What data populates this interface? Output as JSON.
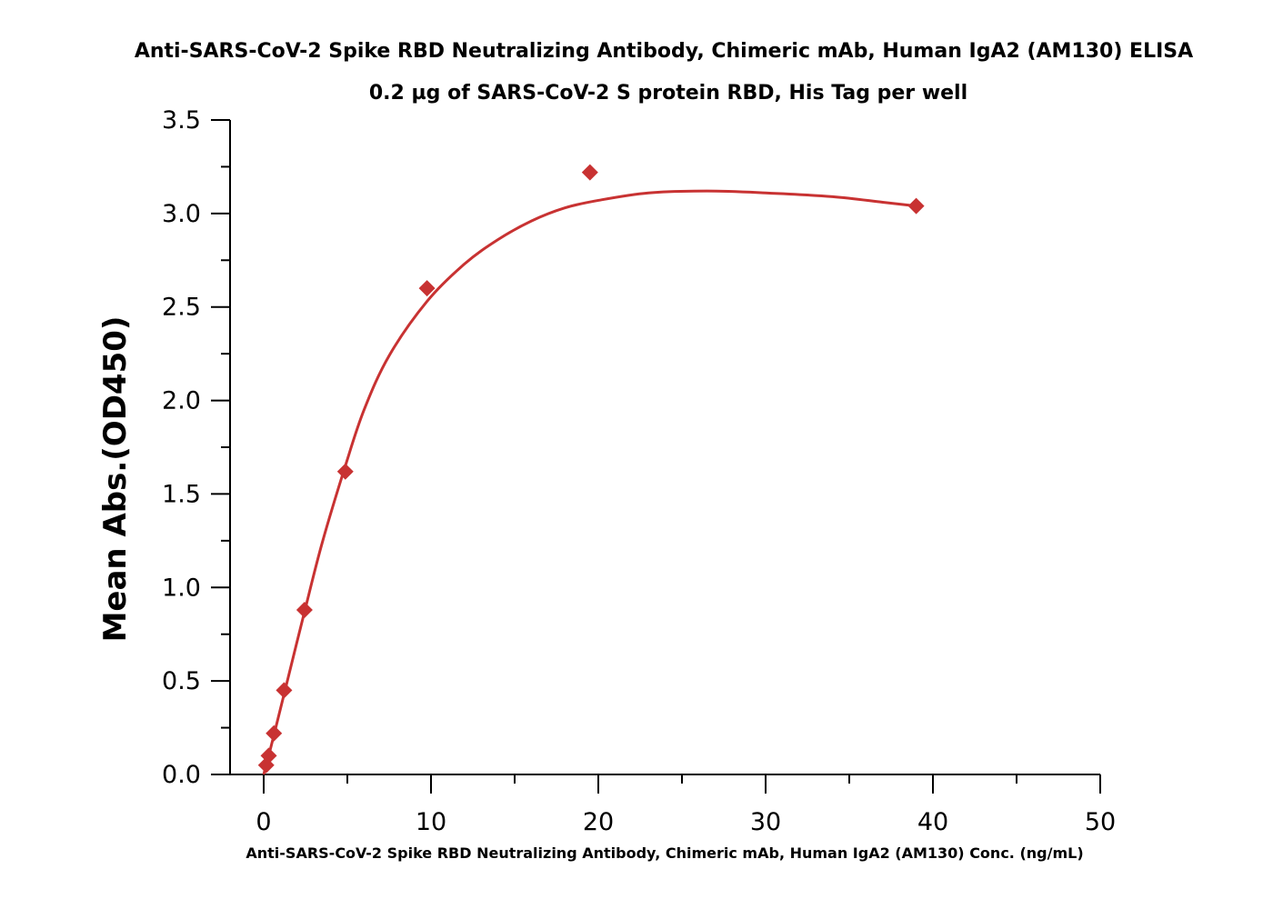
{
  "chart_data": {
    "type": "scatter",
    "title": "Anti-SARS-CoV-2 Spike RBD Neutralizing Antibody, Chimeric mAb, Human IgA2 (AM130) ELISA",
    "subtitle": "0.2 µg of SARS-CoV-2 S protein RBD, His Tag per well",
    "xlabel": "Anti-SARS-CoV-2 Spike RBD Neutralizing Antibody, Chimeric mAb, Human IgA2 (AM130) Conc. (ng/mL)",
    "ylabel": "Mean Abs.(OD450)",
    "xlim": [
      -2,
      50
    ],
    "ylim": [
      0,
      3.5
    ],
    "x_ticks": [
      "0",
      "10",
      "20",
      "30",
      "40",
      "50"
    ],
    "y_ticks": [
      "0.0",
      "0.5",
      "1.0",
      "1.5",
      "2.0",
      "2.5",
      "3.0",
      "3.5"
    ],
    "grid": false,
    "legend": "none",
    "marker": "diamond",
    "color": "#c83232",
    "series": [
      {
        "points": [
          {
            "x": 0.15,
            "y": 0.05
          },
          {
            "x": 0.3,
            "y": 0.1
          },
          {
            "x": 0.61,
            "y": 0.22
          },
          {
            "x": 1.22,
            "y": 0.45
          },
          {
            "x": 2.44,
            "y": 0.88
          },
          {
            "x": 4.88,
            "y": 1.62
          },
          {
            "x": 9.76,
            "y": 2.6
          },
          {
            "x": 19.5,
            "y": 3.22
          },
          {
            "x": 39.0,
            "y": 3.04
          }
        ],
        "fit_curve": [
          {
            "x": 0.0,
            "y": 0.0
          },
          {
            "x": 0.15,
            "y": 0.05
          },
          {
            "x": 0.3,
            "y": 0.1
          },
          {
            "x": 0.61,
            "y": 0.21
          },
          {
            "x": 1.22,
            "y": 0.43
          },
          {
            "x": 2.44,
            "y": 0.87
          },
          {
            "x": 3.5,
            "y": 1.24
          },
          {
            "x": 4.88,
            "y": 1.65
          },
          {
            "x": 6.0,
            "y": 1.95
          },
          {
            "x": 7.5,
            "y": 2.24
          },
          {
            "x": 9.76,
            "y": 2.53
          },
          {
            "x": 12.0,
            "y": 2.73
          },
          {
            "x": 14.0,
            "y": 2.86
          },
          {
            "x": 16.0,
            "y": 2.96
          },
          {
            "x": 18.0,
            "y": 3.03
          },
          {
            "x": 20.0,
            "y": 3.07
          },
          {
            "x": 23.0,
            "y": 3.11
          },
          {
            "x": 26.5,
            "y": 3.12
          },
          {
            "x": 30.0,
            "y": 3.11
          },
          {
            "x": 34.0,
            "y": 3.09
          },
          {
            "x": 37.0,
            "y": 3.06
          },
          {
            "x": 39.0,
            "y": 3.04
          }
        ]
      }
    ]
  }
}
